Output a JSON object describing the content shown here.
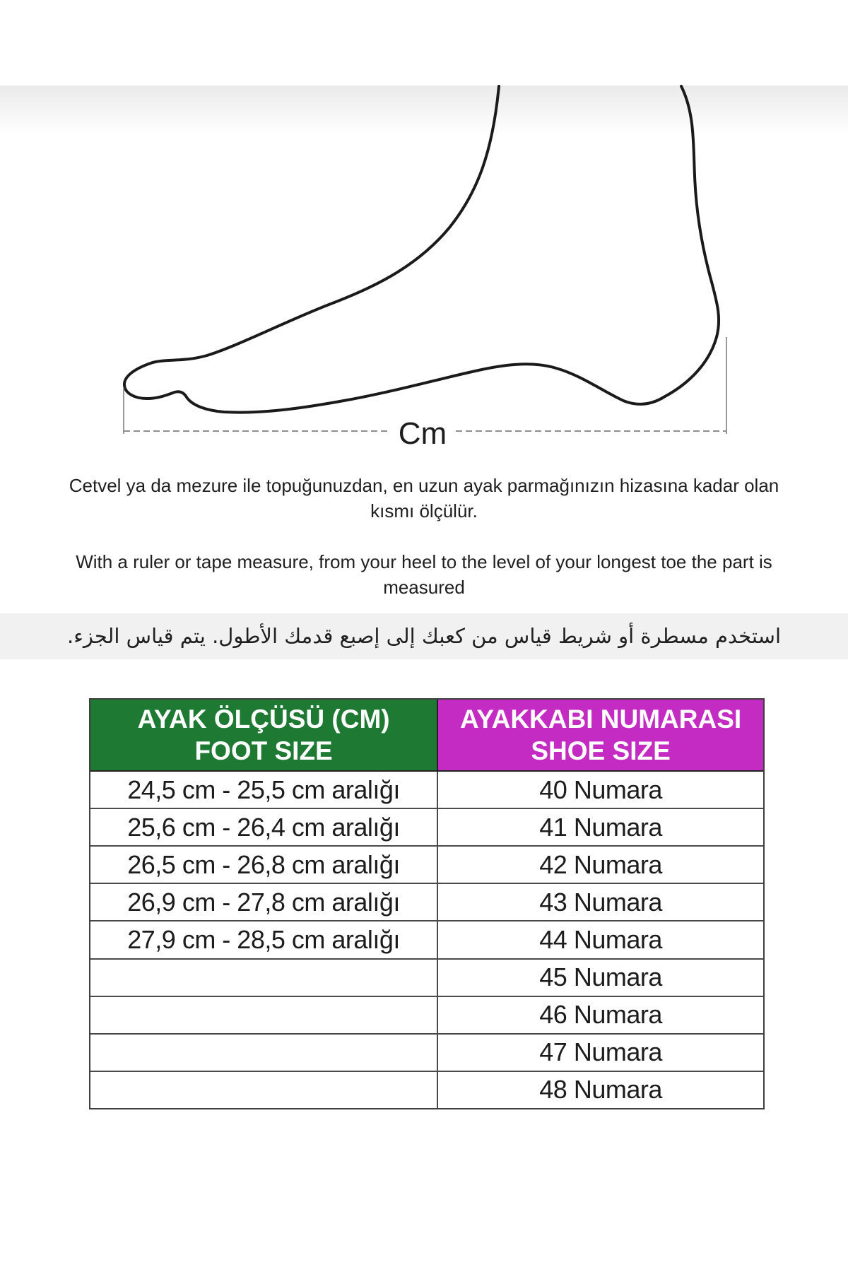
{
  "figure": {
    "unit_label": "Cm"
  },
  "instructions": {
    "turkish": "Cetvel ya da mezure ile topuğunuzdan, en uzun ayak parmağınızın hizasına kadar olan kısmı ölçülür.",
    "english": "With a ruler or tape measure, from your heel to the level of your longest toe the part is measured",
    "arabic": "استخدم مسطرة أو شريط قياس من كعبك إلى إصبع قدمك الأطول.  يتم قياس الجزء."
  },
  "size_table": {
    "headers": {
      "foot": {
        "title": "AYAK ÖLÇÜSÜ (CM)",
        "subtitle": "FOOT SIZE",
        "bg": "#1e7a33"
      },
      "shoe": {
        "title": "AYAKKABI NUMARASI",
        "subtitle": "SHOE SIZE",
        "bg": "#c32bc3"
      }
    },
    "rows": [
      {
        "foot_size_cm": "24,5 cm - 25,5 cm aralığı",
        "shoe_size": "40 Numara"
      },
      {
        "foot_size_cm": "25,6 cm - 26,4 cm aralığı",
        "shoe_size": "41 Numara"
      },
      {
        "foot_size_cm": "26,5 cm - 26,8 cm aralığı",
        "shoe_size": "42 Numara"
      },
      {
        "foot_size_cm": "26,9 cm - 27,8 cm aralığı",
        "shoe_size": "43 Numara"
      },
      {
        "foot_size_cm": "27,9 cm - 28,5 cm aralığı",
        "shoe_size": "44 Numara"
      },
      {
        "foot_size_cm": "",
        "shoe_size": "45 Numara"
      },
      {
        "foot_size_cm": "",
        "shoe_size": "46 Numara"
      },
      {
        "foot_size_cm": "",
        "shoe_size": "47 Numara"
      },
      {
        "foot_size_cm": "",
        "shoe_size": "48 Numara"
      }
    ]
  }
}
